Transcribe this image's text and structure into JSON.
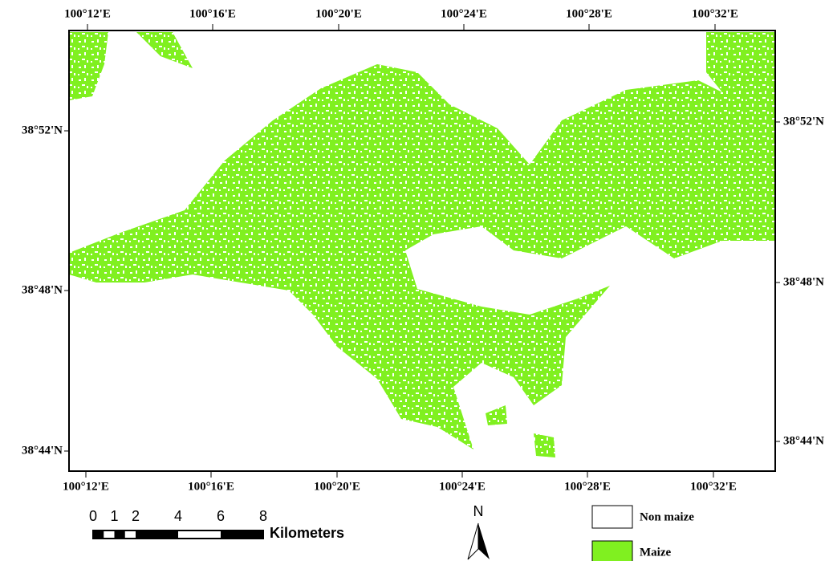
{
  "map": {
    "top_labels": [
      "100°12'E",
      "100°16'E",
      "100°20'E",
      "100°24'E",
      "100°28'E",
      "100°32'E"
    ],
    "bottom_labels": [
      "100°12'E",
      "100°16'E",
      "100°20'E",
      "100°24'E",
      "100°28'E",
      "100°32'E"
    ],
    "left_labels": [
      "38°52'N",
      "38°48'N",
      "38°44'N"
    ],
    "right_labels": [
      "38°52'N",
      "38°48'N",
      "38°44'N"
    ]
  },
  "scale_bar": {
    "ticks": [
      0,
      1,
      2,
      4,
      6,
      8
    ],
    "unit": "Kilometers"
  },
  "north_arrow": "N",
  "legend": [
    {
      "label": "Non maize",
      "color": "#ffffff"
    },
    {
      "label": "Maize",
      "color": "#80f020"
    }
  ]
}
